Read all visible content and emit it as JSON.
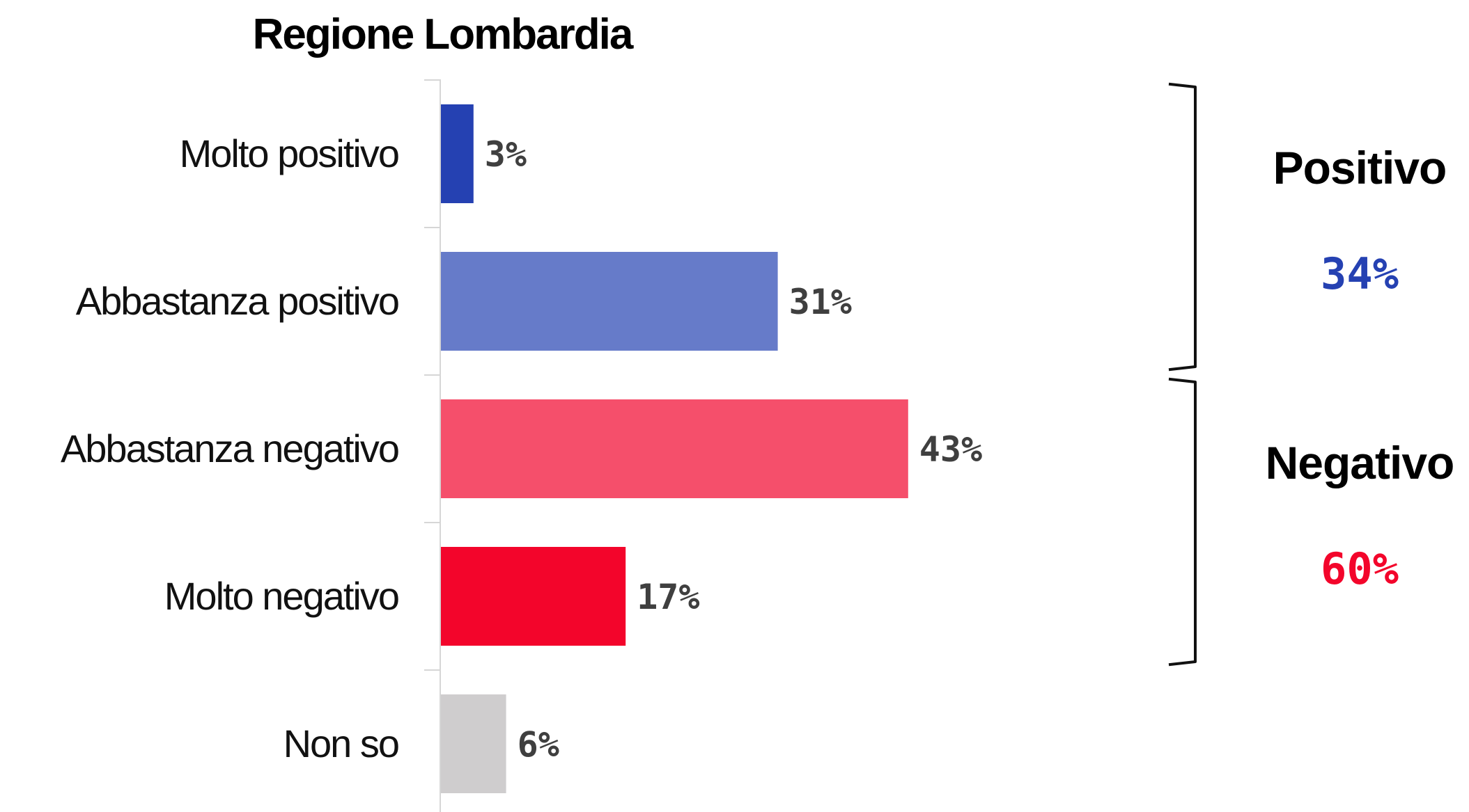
{
  "chart_data": {
    "type": "bar",
    "orientation": "horizontal",
    "title": "Regione Lombardia",
    "xlabel": "",
    "ylabel": "",
    "xlim": [
      0,
      50
    ],
    "grid": false,
    "categories": [
      "Molto positivo",
      "Abbastanza positivo",
      "Abbastanza negativo",
      "Molto negativo",
      "Non so"
    ],
    "values": [
      3,
      31,
      43,
      17,
      6
    ],
    "value_labels": [
      "3%",
      "31%",
      "43%",
      "17%",
      "6%"
    ],
    "bar_colors": [
      "#2541b2",
      "#667bc9",
      "#f54f6b",
      "#f3052b",
      "#cfcdce"
    ],
    "groups": [
      {
        "name": "Positivo",
        "value": 34,
        "value_label": "34%",
        "color": "#2541b2",
        "first_category": 0,
        "last_category": 1
      },
      {
        "name": "Negativo",
        "value": 60,
        "value_label": "60%",
        "color": "#f3052b",
        "first_category": 2,
        "last_category": 3
      }
    ]
  }
}
